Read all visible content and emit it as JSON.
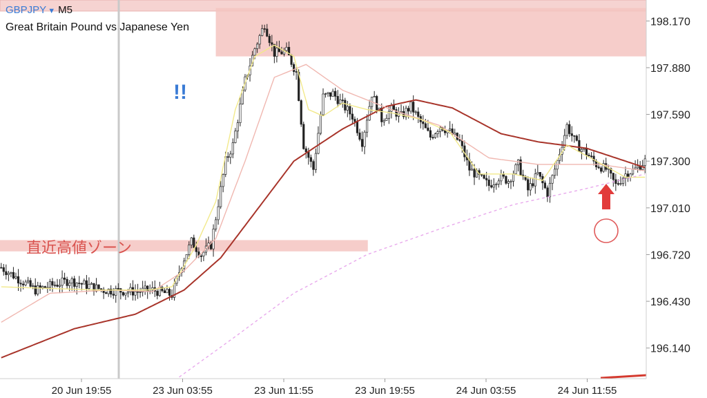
{
  "header": {
    "symbol": "GBPJPY",
    "dropdown_glyph": "▼",
    "timeframe": "M5",
    "subtitle": "Great Britain Pound vs Japanese Yen"
  },
  "chart_data": {
    "type": "candlestick",
    "title": "Great Britain Pound vs Japanese Yen",
    "yaxis": {
      "ticks": [
        "198.170",
        "197.880",
        "197.590",
        "197.300",
        "197.010",
        "196.720",
        "196.430",
        "196.140"
      ],
      "range": [
        195.95,
        198.3
      ]
    },
    "xaxis": {
      "ticks": [
        "20 Jun 19:55",
        "23 Jun 03:55",
        "23 Jun 11:55",
        "23 Jun 19:55",
        "24 Jun 03:55",
        "24 Jun 11:55"
      ]
    },
    "price_path": [
      [
        0,
        196.64
      ],
      [
        14,
        196.5
      ],
      [
        28,
        196.56
      ],
      [
        42,
        196.5
      ],
      [
        55,
        196.49
      ],
      [
        62,
        196.5
      ],
      [
        70,
        196.47
      ],
      [
        74,
        196.66
      ],
      [
        78,
        196.8
      ],
      [
        82,
        196.72
      ],
      [
        86,
        196.78
      ],
      [
        88,
        196.95
      ],
      [
        92,
        197.3
      ],
      [
        95,
        197.4
      ],
      [
        100,
        197.8
      ],
      [
        104,
        198.0
      ],
      [
        108,
        198.15
      ],
      [
        112,
        197.97
      ],
      [
        117,
        197.98
      ],
      [
        121,
        197.85
      ],
      [
        124,
        197.4
      ],
      [
        128,
        197.25
      ],
      [
        132,
        197.7
      ],
      [
        136,
        197.72
      ],
      [
        140,
        197.65
      ],
      [
        144,
        197.58
      ],
      [
        148,
        197.42
      ],
      [
        152,
        197.72
      ],
      [
        156,
        197.56
      ],
      [
        160,
        197.62
      ],
      [
        164,
        197.58
      ],
      [
        168,
        197.64
      ],
      [
        172,
        197.54
      ],
      [
        176,
        197.45
      ],
      [
        180,
        197.52
      ],
      [
        184,
        197.48
      ],
      [
        188,
        197.42
      ],
      [
        192,
        197.25
      ],
      [
        196,
        197.2
      ],
      [
        200,
        197.15
      ],
      [
        204,
        197.2
      ],
      [
        208,
        197.18
      ],
      [
        212,
        197.28
      ],
      [
        216,
        197.12
      ],
      [
        220,
        197.22
      ],
      [
        224,
        197.1
      ],
      [
        228,
        197.3
      ],
      [
        232,
        197.52
      ],
      [
        236,
        197.4
      ],
      [
        240,
        197.35
      ],
      [
        244,
        197.28
      ],
      [
        248,
        197.25
      ],
      [
        252,
        197.15
      ],
      [
        256,
        197.22
      ],
      [
        260,
        197.25
      ],
      [
        264,
        197.3
      ]
    ],
    "series": [
      {
        "name": "",
        "type": "moving_average",
        "color": "#a8342a",
        "values": [
          [
            0,
            196.08
          ],
          [
            30,
            196.26
          ],
          [
            55,
            196.35
          ],
          [
            75,
            196.5
          ],
          [
            90,
            196.7
          ],
          [
            105,
            197.0
          ],
          [
            120,
            197.3
          ],
          [
            140,
            197.5
          ],
          [
            158,
            197.64
          ],
          [
            170,
            197.68
          ],
          [
            185,
            197.63
          ],
          [
            205,
            197.47
          ],
          [
            220,
            197.42
          ],
          [
            240,
            197.38
          ],
          [
            264,
            197.26
          ]
        ]
      },
      {
        "name": "",
        "type": "moving_average",
        "color": "#f0b7b0",
        "values": [
          [
            0,
            196.3
          ],
          [
            20,
            196.48
          ],
          [
            45,
            196.5
          ],
          [
            62,
            196.49
          ],
          [
            75,
            196.62
          ],
          [
            88,
            196.82
          ],
          [
            100,
            197.3
          ],
          [
            112,
            197.82
          ],
          [
            125,
            197.9
          ],
          [
            140,
            197.74
          ],
          [
            160,
            197.62
          ],
          [
            180,
            197.52
          ],
          [
            200,
            197.32
          ],
          [
            220,
            197.28
          ],
          [
            245,
            197.28
          ],
          [
            264,
            197.24
          ]
        ]
      },
      {
        "name": "",
        "type": "moving_average",
        "color": "#f2e98a",
        "values": [
          [
            0,
            196.52
          ],
          [
            20,
            196.51
          ],
          [
            40,
            196.5
          ],
          [
            60,
            196.5
          ],
          [
            70,
            196.52
          ],
          [
            80,
            196.78
          ],
          [
            88,
            197.05
          ],
          [
            96,
            197.62
          ],
          [
            104,
            197.95
          ],
          [
            112,
            198.02
          ],
          [
            120,
            197.95
          ],
          [
            126,
            197.62
          ],
          [
            132,
            197.58
          ],
          [
            140,
            197.66
          ],
          [
            150,
            197.62
          ],
          [
            160,
            197.6
          ],
          [
            172,
            197.56
          ],
          [
            184,
            197.48
          ],
          [
            196,
            197.22
          ],
          [
            210,
            197.22
          ],
          [
            222,
            197.18
          ],
          [
            232,
            197.4
          ],
          [
            244,
            197.3
          ],
          [
            256,
            197.2
          ],
          [
            264,
            197.2
          ]
        ]
      },
      {
        "name": "",
        "type": "moving_average",
        "color": "#e8a8ec",
        "style": "dashed",
        "values": [
          [
            73,
            195.96
          ],
          [
            95,
            196.2
          ],
          [
            120,
            196.48
          ],
          [
            150,
            196.72
          ],
          [
            180,
            196.88
          ],
          [
            210,
            197.03
          ],
          [
            240,
            197.13
          ],
          [
            264,
            197.22
          ]
        ]
      }
    ],
    "annotations": [
      {
        "type": "zone",
        "price_range": [
          197.95,
          198.25
        ],
        "from_bar": 80,
        "to_bar": 264
      },
      {
        "type": "zone",
        "price_range": [
          196.74,
          196.81
        ],
        "from_bar": 0,
        "to_bar": 148,
        "label": "直近高値ゾーン"
      },
      {
        "type": "text",
        "text": "!!"
      },
      {
        "type": "arrow",
        "direction": "up"
      },
      {
        "type": "circle"
      }
    ],
    "grid": false,
    "legend": "none"
  }
}
